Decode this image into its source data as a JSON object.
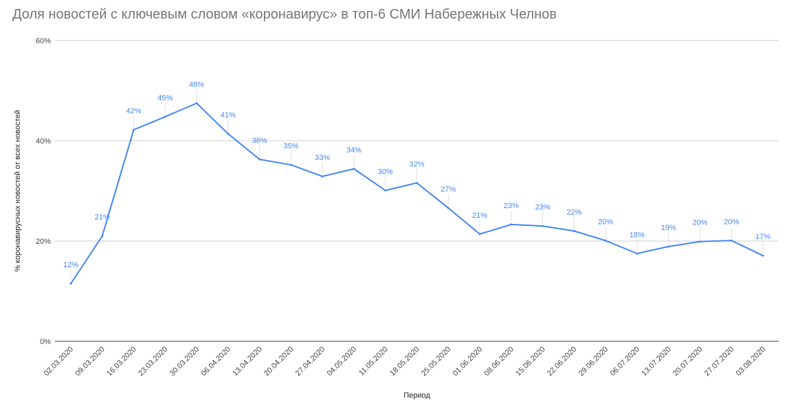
{
  "chart_data": {
    "type": "line",
    "title": "Доля новостей с ключевым словом «коронавирус» в топ-6 СМИ Набережных Челнов",
    "xlabel": "Период",
    "ylabel": "% коронавирусных новостей от всех новостей",
    "ylim": [
      0,
      60
    ],
    "yticks": [
      "0%",
      "20%",
      "40%",
      "60%"
    ],
    "grid": true,
    "color": "#4285f4",
    "categories": [
      "02.03.2020",
      "09.03.2020",
      "16.03.2020",
      "23.03.2020",
      "30.03.2020",
      "06.04.2020",
      "13.04.2020",
      "20.04.2020",
      "27.04.2020",
      "04.05.2020",
      "11.05.2020",
      "18.05.2020",
      "25.05.2020",
      "01.06.2020",
      "08.06.2020",
      "15.06.2020",
      "22.06.2020",
      "29.06.2020",
      "06.07.2020",
      "13.07.2020",
      "20.07.2020",
      "27.07.2020",
      "03.08.2020"
    ],
    "values": [
      11.5,
      21.0,
      42.2,
      44.8,
      47.5,
      41.4,
      36.3,
      35.2,
      32.9,
      34.4,
      30.1,
      31.6,
      26.6,
      21.4,
      23.3,
      23.0,
      22.0,
      20.1,
      17.5,
      18.9,
      19.9,
      20.1,
      17.1
    ],
    "data_labels": [
      "12%",
      "21%",
      "42%",
      "45%",
      "48%",
      "41%",
      "36%",
      "35%",
      "33%",
      "34%",
      "30%",
      "32%",
      "27%",
      "21%",
      "23%",
      "23%",
      "22%",
      "20%",
      "18%",
      "19%",
      "20%",
      "20%",
      "17%"
    ]
  }
}
